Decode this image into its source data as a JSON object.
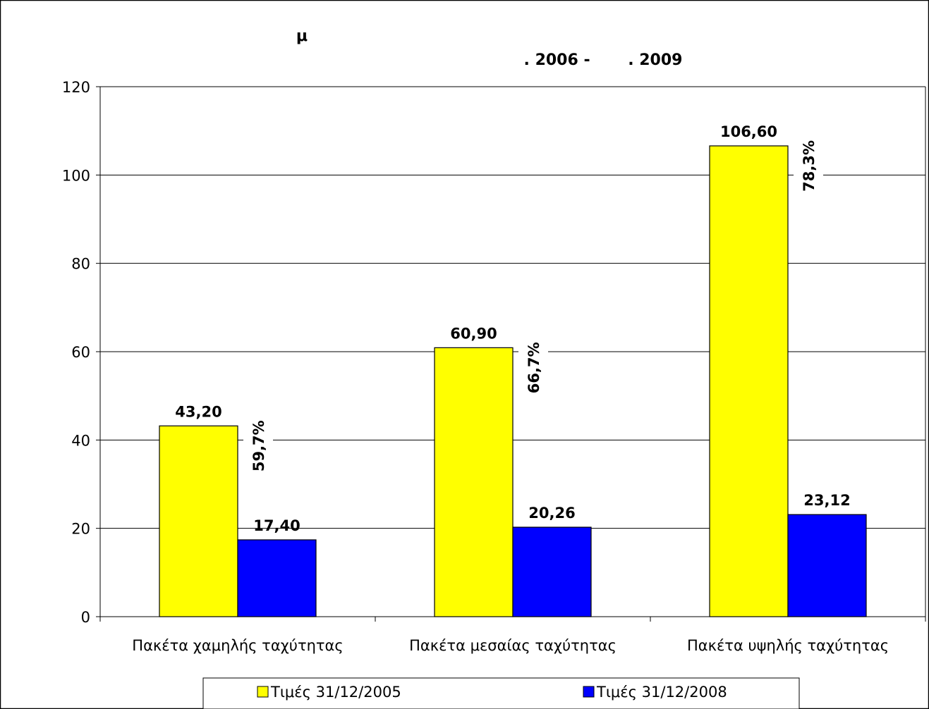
{
  "chart_data": {
    "type": "bar",
    "title_line1": "μ",
    "title_line2": ". 2006 -       . 2009",
    "categories": [
      "Πακέτα χαμηλής ταχύτητας",
      "Πακέτα μεσαίας ταχύτητας",
      "Πακέτα υψηλής ταχύτητας"
    ],
    "series": [
      {
        "name": "Τιμές 31/12/2005",
        "color": "#FFFF00",
        "values": [
          43.2,
          60.9,
          106.6
        ],
        "labels": [
          "43,20",
          "60,90",
          "106,60"
        ]
      },
      {
        "name": "Τιμές 31/12/2008",
        "color": "#0000FF",
        "values": [
          17.4,
          20.26,
          23.12
        ],
        "labels": [
          "17,40",
          "20,26",
          "23,12"
        ]
      }
    ],
    "change_labels": [
      "59,7%",
      "66,7%",
      "78,3%"
    ],
    "yticks": [
      "0",
      "20",
      "40",
      "60",
      "80",
      "100",
      "120"
    ],
    "ylim": [
      0,
      120
    ],
    "grid": true,
    "legend_position": "bottom"
  }
}
